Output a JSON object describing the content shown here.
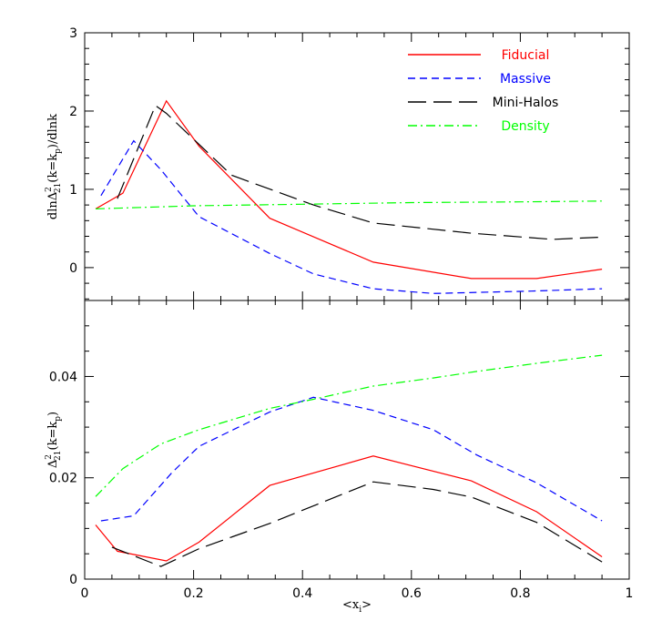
{
  "chart_data": [
    {
      "panel": "top",
      "type": "line",
      "ylabel_parts": {
        "base": "dlnΔ",
        "sup": "2",
        "sub": "21",
        "mid": "(k=k",
        "sub2": "p",
        "end": ")/dlnk"
      },
      "xlim": [
        0,
        1
      ],
      "ylim": [
        -0.42,
        3
      ],
      "yticks": [
        0,
        1,
        2,
        3
      ],
      "ytick_labels": [
        "0",
        "1",
        "2",
        "3"
      ],
      "legend_position": "top-right",
      "series": [
        {
          "name": "Fiducial",
          "color": "#ff0000",
          "dash": "solid",
          "x": [
            0.02,
            0.07,
            0.15,
            0.21,
            0.34,
            0.53,
            0.71,
            0.83,
            0.95
          ],
          "y": [
            0.75,
            0.95,
            2.13,
            1.55,
            0.63,
            0.07,
            -0.14,
            -0.14,
            -0.02
          ]
        },
        {
          "name": "Massive",
          "color": "#0000ff",
          "dash": "short",
          "x": [
            0.03,
            0.09,
            0.14,
            0.21,
            0.34,
            0.42,
            0.53,
            0.64,
            0.82,
            0.95
          ],
          "y": [
            0.92,
            1.62,
            1.25,
            0.65,
            0.18,
            -0.08,
            -0.27,
            -0.33,
            -0.3,
            -0.27
          ]
        },
        {
          "name": "Mini-Halos",
          "color": "#000000",
          "dash": "long",
          "x": [
            0.06,
            0.13,
            0.15,
            0.27,
            0.42,
            0.53,
            0.71,
            0.86,
            0.95
          ],
          "y": [
            0.88,
            2.07,
            1.97,
            1.18,
            0.8,
            0.57,
            0.44,
            0.36,
            0.39
          ]
        },
        {
          "name": "Density",
          "color": "#00ff00",
          "dash": "dashdot",
          "x": [
            0.02,
            0.2,
            0.4,
            0.6,
            0.8,
            0.95
          ],
          "y": [
            0.75,
            0.79,
            0.81,
            0.83,
            0.84,
            0.85
          ]
        }
      ]
    },
    {
      "panel": "bottom",
      "type": "line",
      "ylabel_parts": {
        "base": "Δ",
        "sup": "2",
        "sub": "21",
        "mid": "(k=k",
        "sub2": "p",
        "end": ")"
      },
      "xlabel": "<x",
      "xlabel_sub": "i",
      "xlabel_end": ">",
      "xlim": [
        0,
        1
      ],
      "ylim": [
        0,
        0.055
      ],
      "xticks": [
        0,
        0.2,
        0.4,
        0.6,
        0.8,
        1
      ],
      "xtick_labels": [
        "0",
        "0.2",
        "0.4",
        "0.6",
        "0.8",
        "1"
      ],
      "yticks": [
        0,
        0.02,
        0.04
      ],
      "ytick_labels": [
        "0",
        "0.02",
        "0.04"
      ],
      "series": [
        {
          "name": "Fiducial",
          "color": "#ff0000",
          "dash": "solid",
          "x": [
            0.02,
            0.06,
            0.15,
            0.21,
            0.34,
            0.53,
            0.71,
            0.83,
            0.95
          ],
          "y": [
            0.0107,
            0.0055,
            0.0036,
            0.0073,
            0.0185,
            0.0243,
            0.0194,
            0.0133,
            0.0044
          ]
        },
        {
          "name": "Massive",
          "color": "#0000ff",
          "dash": "short",
          "x": [
            0.03,
            0.09,
            0.16,
            0.21,
            0.34,
            0.42,
            0.53,
            0.64,
            0.72,
            0.83,
            0.95
          ],
          "y": [
            0.0115,
            0.0125,
            0.021,
            0.0262,
            0.033,
            0.0359,
            0.0333,
            0.0295,
            0.0245,
            0.019,
            0.0115
          ]
        },
        {
          "name": "Mini-Halos",
          "color": "#000000",
          "dash": "long",
          "x": [
            0.05,
            0.14,
            0.21,
            0.34,
            0.53,
            0.64,
            0.71,
            0.83,
            0.95
          ],
          "y": [
            0.0063,
            0.0025,
            0.006,
            0.011,
            0.0192,
            0.0177,
            0.0162,
            0.0112,
            0.0034
          ]
        },
        {
          "name": "Density",
          "color": "#00ff00",
          "dash": "dashdot",
          "x": [
            0.02,
            0.07,
            0.14,
            0.21,
            0.34,
            0.42,
            0.53,
            0.64,
            0.72,
            0.83,
            0.95
          ],
          "y": [
            0.0163,
            0.0218,
            0.0267,
            0.0295,
            0.0337,
            0.0355,
            0.0381,
            0.0397,
            0.041,
            0.0426,
            0.0442
          ]
        }
      ]
    }
  ],
  "legend": [
    {
      "label": "Fiducial",
      "color": "#ff0000",
      "dash": "solid"
    },
    {
      "label": "Massive",
      "color": "#0000ff",
      "dash": "short"
    },
    {
      "label": "Mini-Halos",
      "color": "#000000",
      "dash": "long"
    },
    {
      "label": "Density",
      "color": "#00ff00",
      "dash": "dashdot"
    }
  ]
}
